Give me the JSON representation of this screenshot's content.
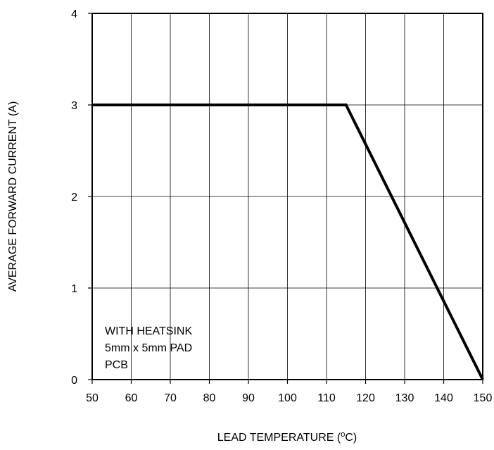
{
  "chart_data": {
    "type": "line",
    "title": "",
    "xlabel": "LEAD TEMPERATURE (",
    "xlabel_unit_super": "o",
    "xlabel_unit": "C)",
    "ylabel": "AVERAGE FORWARD CURRENT (A)",
    "xlim": [
      50,
      150
    ],
    "ylim": [
      0,
      4
    ],
    "x_ticks": [
      50,
      60,
      70,
      80,
      90,
      100,
      110,
      120,
      130,
      140,
      150
    ],
    "y_ticks": [
      0,
      1,
      2,
      3,
      4
    ],
    "x_tick_labels": [
      "50",
      "60",
      "70",
      "80",
      "90",
      "100",
      "110",
      "120",
      "130",
      "140",
      "150"
    ],
    "y_tick_labels": [
      "0",
      "1",
      "2",
      "3",
      "4"
    ],
    "grid": true,
    "annotation": [
      "WITH HEATSINK",
      "5mm x 5mm PAD",
      "PCB"
    ],
    "series": [
      {
        "x": [
          50,
          115,
          150
        ],
        "y": [
          3,
          3,
          0
        ]
      }
    ],
    "line_color": "#000000"
  }
}
